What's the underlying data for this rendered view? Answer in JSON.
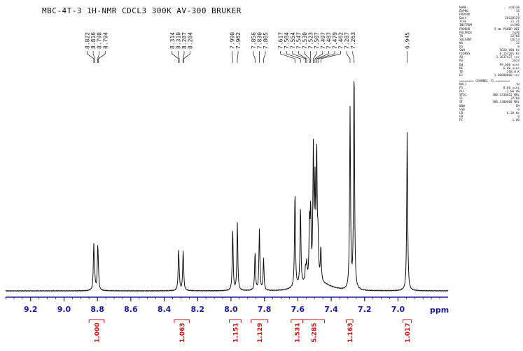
{
  "title": "MBC-4T-3 1H-NMR CDCL3 300K AV-300 BRUKER",
  "params": [
    {
      "k": "NAME",
      "v": "zc0530"
    },
    {
      "k": "EXPNO",
      "v": "14"
    },
    {
      "k": "PROCNO",
      "v": "1"
    },
    {
      "k": "Date_",
      "v": "20120529"
    },
    {
      "k": "Time",
      "v": "21.31"
    },
    {
      "k": "INSTRUM",
      "v": "av300"
    },
    {
      "k": "PROBHD",
      "v": "5 mm PABBP BBI"
    },
    {
      "k": "PULPROG",
      "v": "zg30"
    },
    {
      "k": "TD",
      "v": "32768"
    },
    {
      "k": "SOLVENT",
      "v": "CDCl3"
    },
    {
      "k": "NS",
      "v": "32"
    },
    {
      "k": "DS",
      "v": "0"
    },
    {
      "k": "SWH",
      "v": "5020.080 Hz"
    },
    {
      "k": "FIDRES",
      "v": "0.153201 Hz"
    },
    {
      "k": "AQ",
      "v": "3.2637427 sec"
    },
    {
      "k": "RG",
      "v": "1024"
    },
    {
      "k": "DW",
      "v": "99.600 usec"
    },
    {
      "k": "DE",
      "v": "6.00 usec"
    },
    {
      "k": "TE",
      "v": "298.0 K"
    },
    {
      "k": "D1",
      "v": "1.00000000 sec"
    }
  ],
  "channel_header": "======== CHANNEL f1 ========",
  "channel_params": [
    {
      "k": "NUC1",
      "v": "1H"
    },
    {
      "k": "P1",
      "v": "8.80 usec"
    },
    {
      "k": "PL1",
      "v": "-2.00 dB"
    },
    {
      "k": "SFO1",
      "v": "300.1330022 MHz"
    },
    {
      "k": "SI",
      "v": "32768"
    },
    {
      "k": "SF",
      "v": "300.1300000 MHz"
    },
    {
      "k": "WDW",
      "v": "EM"
    },
    {
      "k": "SSB",
      "v": "0"
    },
    {
      "k": "LB",
      "v": "0.20 Hz"
    },
    {
      "k": "GB",
      "v": "0"
    },
    {
      "k": "PC",
      "v": "1.00"
    }
  ],
  "colors": {
    "spectrum": "#111111",
    "axis": "#1a1a9a",
    "integral": "#cc1111"
  },
  "chart_data": {
    "type": "line",
    "xlabel": "ppm",
    "xlim": [
      9.35,
      6.7
    ],
    "x_ticks": [
      "9.2",
      "9.0",
      "8.8",
      "8.6",
      "8.4",
      "8.2",
      "8.0",
      "7.8",
      "7.6",
      "7.4",
      "7.2",
      "7.0"
    ],
    "x_tick_values": [
      9.2,
      9.0,
      8.8,
      8.6,
      8.4,
      8.2,
      8.0,
      7.8,
      7.6,
      7.4,
      7.2,
      7.0
    ],
    "peak_labels": [
      "8.822",
      "8.816",
      "8.798",
      "8.794",
      "8.314",
      "8.310",
      "8.287",
      "8.284",
      "7.990",
      "7.962",
      "7.856",
      "7.830",
      "7.805",
      "7.617",
      "7.584",
      "7.554",
      "7.547",
      "7.530",
      "7.523",
      "7.507",
      "7.497",
      "7.487",
      "7.479",
      "7.462",
      "7.287",
      "7.263",
      "6.945"
    ],
    "peaks": [
      {
        "x": 8.822,
        "h": 0.2
      },
      {
        "x": 8.816,
        "h": 0.04
      },
      {
        "x": 8.798,
        "h": 0.19
      },
      {
        "x": 8.794,
        "h": 0.04
      },
      {
        "x": 8.314,
        "h": 0.17
      },
      {
        "x": 8.31,
        "h": 0.03
      },
      {
        "x": 8.287,
        "h": 0.16
      },
      {
        "x": 8.284,
        "h": 0.03
      },
      {
        "x": 7.99,
        "h": 0.27
      },
      {
        "x": 7.962,
        "h": 0.3
      },
      {
        "x": 7.856,
        "h": 0.17
      },
      {
        "x": 7.83,
        "h": 0.27
      },
      {
        "x": 7.805,
        "h": 0.14
      },
      {
        "x": 7.617,
        "h": 0.43
      },
      {
        "x": 7.584,
        "h": 0.35
      },
      {
        "x": 7.554,
        "h": 0.06
      },
      {
        "x": 7.547,
        "h": 0.08
      },
      {
        "x": 7.53,
        "h": 0.25
      },
      {
        "x": 7.523,
        "h": 0.3
      },
      {
        "x": 7.507,
        "h": 0.57
      },
      {
        "x": 7.497,
        "h": 0.4
      },
      {
        "x": 7.487,
        "h": 0.57
      },
      {
        "x": 7.479,
        "h": 0.18
      },
      {
        "x": 7.462,
        "h": 0.15
      },
      {
        "x": 7.287,
        "h": 0.8
      },
      {
        "x": 7.263,
        "h": 1.0
      },
      {
        "x": 6.945,
        "h": 0.71
      }
    ],
    "integrals": [
      {
        "label": "1.000",
        "from": 8.85,
        "to": 8.76
      },
      {
        "label": "1.063",
        "from": 8.34,
        "to": 8.25
      },
      {
        "label": "1.151",
        "from": 8.01,
        "to": 7.94
      },
      {
        "label": "1.129",
        "from": 7.88,
        "to": 7.78
      },
      {
        "label": "1.531",
        "from": 7.64,
        "to": 7.57
      },
      {
        "label": "5.285",
        "from": 7.57,
        "to": 7.44
      },
      {
        "label": "1.163",
        "from": 7.31,
        "to": 7.27
      },
      {
        "label": "1.017",
        "from": 6.97,
        "to": 6.92
      }
    ]
  }
}
